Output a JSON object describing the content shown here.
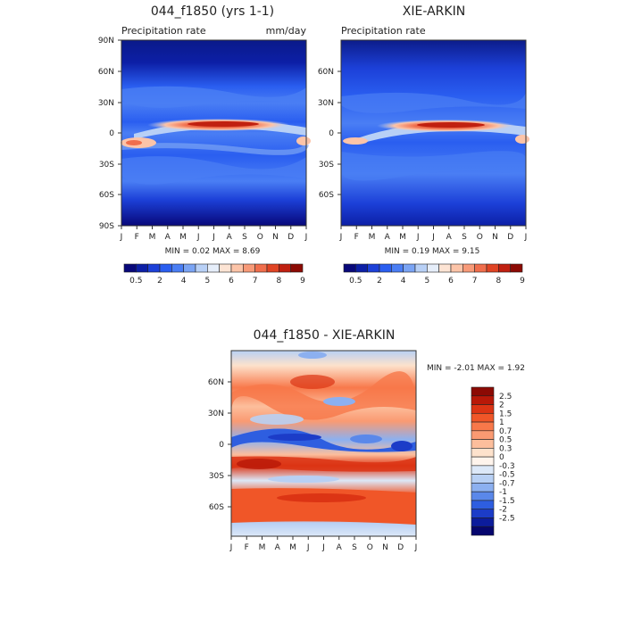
{
  "chart_data": [
    {
      "type": "heatmap",
      "title": "044_f1850 (yrs 1-1)",
      "subtitle_left": "Precipitation rate",
      "subtitle_right": "mm/day",
      "x_tick_labels": [
        "J",
        "F",
        "M",
        "A",
        "M",
        "J",
        "J",
        "A",
        "S",
        "O",
        "N",
        "D",
        "J"
      ],
      "y_tick_labels": [
        "90N",
        "60N",
        "30N",
        "0",
        "30S",
        "60S",
        "90S"
      ],
      "stats_text": "MIN =    0.02  MAX =      8.69",
      "colorbar_labels": [
        "0.5",
        "2",
        "4",
        "5",
        "6",
        "7",
        "8",
        "9"
      ],
      "colorbar_colors": [
        "#08087a",
        "#0c1fa6",
        "#1c40d8",
        "#2a5ef0",
        "#4a7ef4",
        "#7aa4f4",
        "#b8d0f6",
        "#e6eefa",
        "#fde4d4",
        "#fcc4a8",
        "#f89a78",
        "#f06e4c",
        "#e04424",
        "#c02010",
        "#8c0a04"
      ]
    },
    {
      "type": "heatmap",
      "title": "XIE-ARKIN",
      "subtitle_left": "Precipitation rate",
      "x_tick_labels": [
        "J",
        "F",
        "M",
        "A",
        "M",
        "J",
        "J",
        "A",
        "S",
        "O",
        "N",
        "D",
        "J"
      ],
      "y_tick_labels": [
        "60N",
        "30N",
        "0",
        "30S",
        "60S"
      ],
      "stats_text": "MIN =    0.19  MAX =      9.15",
      "colorbar_labels": [
        "0.5",
        "2",
        "4",
        "5",
        "6",
        "7",
        "8",
        "9"
      ],
      "colorbar_colors": [
        "#08087a",
        "#0c1fa6",
        "#1c40d8",
        "#2a5ef0",
        "#4a7ef4",
        "#7aa4f4",
        "#b8d0f6",
        "#e6eefa",
        "#fde4d4",
        "#fcc4a8",
        "#f89a78",
        "#f06e4c",
        "#e04424",
        "#c02010",
        "#8c0a04"
      ]
    },
    {
      "type": "heatmap",
      "title": "044_f1850 - XIE-ARKIN",
      "x_tick_labels": [
        "J",
        "F",
        "M",
        "A",
        "M",
        "J",
        "J",
        "A",
        "S",
        "O",
        "N",
        "D",
        "J"
      ],
      "y_tick_labels": [
        "60N",
        "30N",
        "0",
        "30S",
        "60S"
      ],
      "stats_text": "MIN =   -2.01  MAX =      1.92",
      "colorbar_labels": [
        "2.5",
        "2",
        "1.5",
        "1",
        "0.7",
        "0.5",
        "0.3",
        "0",
        "-0.3",
        "-0.5",
        "-0.7",
        "-1",
        "-1.5",
        "-2",
        "-2.5"
      ],
      "colorbar_colors": [
        "#8c0a04",
        "#b81808",
        "#dc3414",
        "#f05628",
        "#f8784a",
        "#fa9a72",
        "#fcbe9c",
        "#fde2cc",
        "#fff4ec",
        "#dce8f8",
        "#b8d0f4",
        "#8cb0f0",
        "#5a88ea",
        "#2e5ee0",
        "#1c3cc8",
        "#0c1c9c",
        "#06066e"
      ]
    }
  ]
}
